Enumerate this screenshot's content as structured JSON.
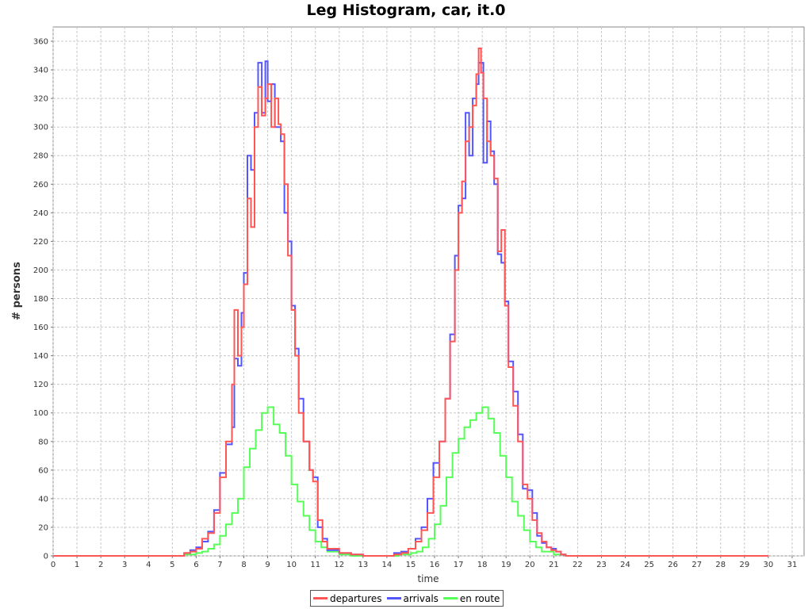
{
  "chart_data": {
    "type": "line",
    "title": "Leg Histogram, car, it.0",
    "xlabel": "time",
    "ylabel": "# persons",
    "xlim": [
      0,
      31.5
    ],
    "ylim": [
      0,
      370
    ],
    "xticks": [
      0,
      1,
      2,
      3,
      4,
      5,
      6,
      7,
      8,
      9,
      10,
      11,
      12,
      13,
      14,
      15,
      16,
      17,
      18,
      19,
      20,
      21,
      22,
      23,
      24,
      25,
      26,
      27,
      28,
      29,
      30,
      31
    ],
    "yticks": [
      0,
      20,
      40,
      60,
      80,
      100,
      120,
      140,
      160,
      180,
      200,
      220,
      240,
      260,
      280,
      300,
      320,
      340,
      360
    ],
    "grid": true,
    "legend_position": "bottom",
    "step": true,
    "series": [
      {
        "name": "departures",
        "color": "#ff5555",
        "points": [
          [
            0,
            0
          ],
          [
            5.4,
            0
          ],
          [
            5.5,
            2
          ],
          [
            5.75,
            3
          ],
          [
            6.0,
            5
          ],
          [
            6.25,
            12
          ],
          [
            6.5,
            16
          ],
          [
            6.75,
            30
          ],
          [
            7.0,
            55
          ],
          [
            7.25,
            80
          ],
          [
            7.5,
            120
          ],
          [
            7.6,
            172
          ],
          [
            7.75,
            140
          ],
          [
            7.9,
            160
          ],
          [
            8.0,
            190
          ],
          [
            8.15,
            250
          ],
          [
            8.3,
            230
          ],
          [
            8.45,
            300
          ],
          [
            8.6,
            328
          ],
          [
            8.75,
            308
          ],
          [
            8.9,
            320
          ],
          [
            9.0,
            330
          ],
          [
            9.15,
            300
          ],
          [
            9.3,
            320
          ],
          [
            9.45,
            302
          ],
          [
            9.55,
            295
          ],
          [
            9.7,
            260
          ],
          [
            9.85,
            210
          ],
          [
            10.0,
            172
          ],
          [
            10.15,
            140
          ],
          [
            10.3,
            100
          ],
          [
            10.5,
            80
          ],
          [
            10.75,
            60
          ],
          [
            10.9,
            52
          ],
          [
            11.1,
            25
          ],
          [
            11.3,
            10
          ],
          [
            11.5,
            5
          ],
          [
            12.0,
            2
          ],
          [
            12.5,
            1
          ],
          [
            13.0,
            0
          ],
          [
            14.0,
            0
          ],
          [
            14.3,
            1
          ],
          [
            14.6,
            2
          ],
          [
            14.9,
            5
          ],
          [
            15.2,
            10
          ],
          [
            15.45,
            18
          ],
          [
            15.7,
            30
          ],
          [
            15.95,
            55
          ],
          [
            16.2,
            80
          ],
          [
            16.45,
            110
          ],
          [
            16.65,
            150
          ],
          [
            16.85,
            200
          ],
          [
            17.0,
            240
          ],
          [
            17.15,
            262
          ],
          [
            17.3,
            290
          ],
          [
            17.45,
            300
          ],
          [
            17.6,
            315
          ],
          [
            17.75,
            337
          ],
          [
            17.85,
            355
          ],
          [
            17.95,
            338
          ],
          [
            18.05,
            320
          ],
          [
            18.2,
            290
          ],
          [
            18.35,
            280
          ],
          [
            18.5,
            264
          ],
          [
            18.65,
            213
          ],
          [
            18.8,
            228
          ],
          [
            18.95,
            175
          ],
          [
            19.1,
            132
          ],
          [
            19.3,
            105
          ],
          [
            19.5,
            80
          ],
          [
            19.7,
            50
          ],
          [
            19.9,
            40
          ],
          [
            20.1,
            25
          ],
          [
            20.3,
            16
          ],
          [
            20.5,
            10
          ],
          [
            20.7,
            6
          ],
          [
            20.9,
            4
          ],
          [
            21.1,
            3
          ],
          [
            21.3,
            1
          ],
          [
            21.5,
            0
          ],
          [
            30.0,
            0
          ]
        ]
      },
      {
        "name": "arrivals",
        "color": "#5555ff",
        "points": [
          [
            0,
            0
          ],
          [
            5.4,
            0
          ],
          [
            5.5,
            2
          ],
          [
            5.75,
            4
          ],
          [
            6.0,
            6
          ],
          [
            6.25,
            10
          ],
          [
            6.5,
            17
          ],
          [
            6.75,
            32
          ],
          [
            7.0,
            58
          ],
          [
            7.25,
            78
          ],
          [
            7.5,
            90
          ],
          [
            7.6,
            138
          ],
          [
            7.75,
            133
          ],
          [
            7.9,
            170
          ],
          [
            8.0,
            198
          ],
          [
            8.15,
            280
          ],
          [
            8.3,
            270
          ],
          [
            8.45,
            310
          ],
          [
            8.6,
            345
          ],
          [
            8.75,
            310
          ],
          [
            8.9,
            346
          ],
          [
            9.0,
            318
          ],
          [
            9.15,
            330
          ],
          [
            9.3,
            300
          ],
          [
            9.45,
            300
          ],
          [
            9.55,
            290
          ],
          [
            9.7,
            240
          ],
          [
            9.85,
            220
          ],
          [
            10.0,
            175
          ],
          [
            10.15,
            145
          ],
          [
            10.3,
            110
          ],
          [
            10.5,
            80
          ],
          [
            10.75,
            60
          ],
          [
            10.9,
            55
          ],
          [
            11.1,
            20
          ],
          [
            11.3,
            12
          ],
          [
            11.5,
            4
          ],
          [
            12.0,
            2
          ],
          [
            12.5,
            1
          ],
          [
            13.0,
            0
          ],
          [
            14.0,
            0
          ],
          [
            14.3,
            2
          ],
          [
            14.6,
            3
          ],
          [
            14.9,
            5
          ],
          [
            15.2,
            12
          ],
          [
            15.45,
            20
          ],
          [
            15.7,
            40
          ],
          [
            15.95,
            65
          ],
          [
            16.2,
            80
          ],
          [
            16.45,
            110
          ],
          [
            16.65,
            155
          ],
          [
            16.85,
            210
          ],
          [
            17.0,
            245
          ],
          [
            17.15,
            250
          ],
          [
            17.3,
            310
          ],
          [
            17.45,
            280
          ],
          [
            17.6,
            320
          ],
          [
            17.75,
            330
          ],
          [
            17.85,
            345
          ],
          [
            17.95,
            345
          ],
          [
            18.05,
            275
          ],
          [
            18.2,
            304
          ],
          [
            18.35,
            283
          ],
          [
            18.5,
            260
          ],
          [
            18.65,
            211
          ],
          [
            18.8,
            205
          ],
          [
            18.95,
            178
          ],
          [
            19.1,
            136
          ],
          [
            19.3,
            115
          ],
          [
            19.5,
            85
          ],
          [
            19.7,
            47
          ],
          [
            19.9,
            46
          ],
          [
            20.1,
            30
          ],
          [
            20.3,
            14
          ],
          [
            20.5,
            9
          ],
          [
            20.7,
            6
          ],
          [
            20.9,
            5
          ],
          [
            21.1,
            3
          ],
          [
            21.3,
            1
          ],
          [
            21.5,
            0
          ],
          [
            30.0,
            0
          ]
        ]
      },
      {
        "name": "en route",
        "color": "#55ff55",
        "points": [
          [
            0,
            0
          ],
          [
            5.4,
            0
          ],
          [
            5.5,
            1
          ],
          [
            6.0,
            2
          ],
          [
            6.25,
            3
          ],
          [
            6.5,
            5
          ],
          [
            6.75,
            8
          ],
          [
            7.0,
            14
          ],
          [
            7.25,
            22
          ],
          [
            7.5,
            30
          ],
          [
            7.75,
            40
          ],
          [
            8.0,
            62
          ],
          [
            8.25,
            75
          ],
          [
            8.5,
            88
          ],
          [
            8.75,
            100
          ],
          [
            9.0,
            104
          ],
          [
            9.25,
            92
          ],
          [
            9.5,
            86
          ],
          [
            9.75,
            70
          ],
          [
            10.0,
            50
          ],
          [
            10.25,
            38
          ],
          [
            10.5,
            28
          ],
          [
            10.75,
            18
          ],
          [
            11.0,
            10
          ],
          [
            11.25,
            6
          ],
          [
            11.5,
            3
          ],
          [
            12.0,
            1
          ],
          [
            12.5,
            0
          ],
          [
            14.0,
            0
          ],
          [
            14.5,
            1
          ],
          [
            15.0,
            2
          ],
          [
            15.25,
            3
          ],
          [
            15.5,
            6
          ],
          [
            15.75,
            12
          ],
          [
            16.0,
            22
          ],
          [
            16.25,
            35
          ],
          [
            16.5,
            55
          ],
          [
            16.75,
            72
          ],
          [
            17.0,
            82
          ],
          [
            17.25,
            90
          ],
          [
            17.5,
            95
          ],
          [
            17.75,
            100
          ],
          [
            18.0,
            104
          ],
          [
            18.25,
            96
          ],
          [
            18.5,
            86
          ],
          [
            18.75,
            70
          ],
          [
            19.0,
            55
          ],
          [
            19.25,
            38
          ],
          [
            19.5,
            28
          ],
          [
            19.75,
            18
          ],
          [
            20.0,
            10
          ],
          [
            20.25,
            6
          ],
          [
            20.5,
            3
          ],
          [
            21.0,
            1
          ],
          [
            21.5,
            0
          ],
          [
            30.0,
            0
          ]
        ]
      }
    ]
  }
}
